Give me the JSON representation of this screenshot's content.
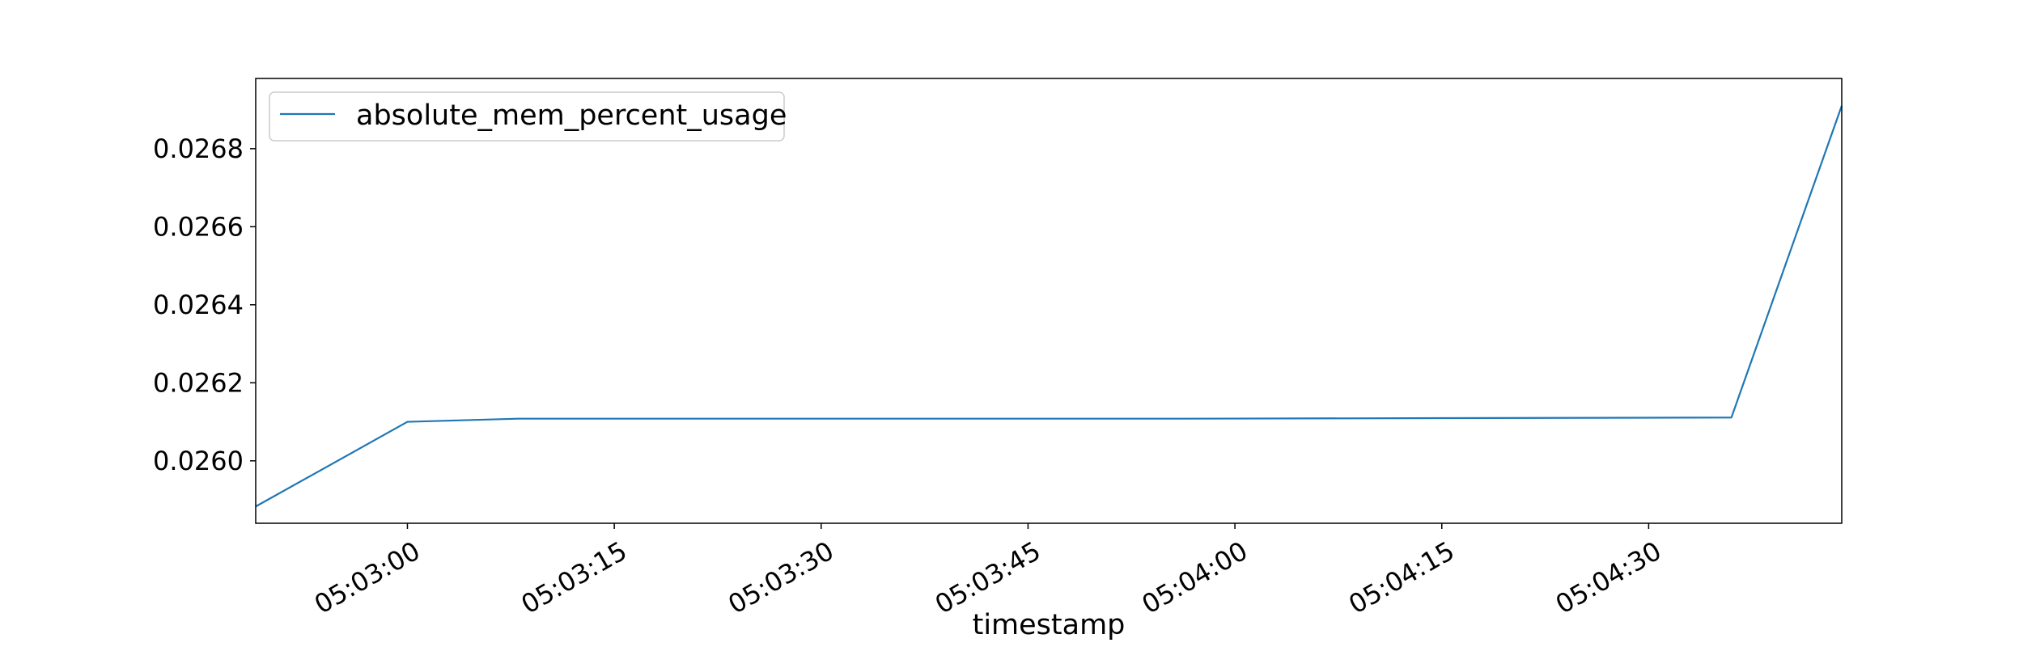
{
  "chart_data": {
    "type": "line",
    "title": "",
    "xlabel": "timestamp",
    "ylabel": "",
    "x_type": "time",
    "x_start": "05:02:49",
    "x_end": "05:04:44",
    "xlim": [
      "05:02:49",
      "05:04:44"
    ],
    "x_ticks": [
      "05:03:00",
      "05:03:15",
      "05:03:30",
      "05:03:45",
      "05:04:00",
      "05:04:15",
      "05:04:30"
    ],
    "ylim": [
      0.02584,
      0.02698
    ],
    "y_ticks": [
      0.026,
      0.0262,
      0.0264,
      0.0266,
      0.0268
    ],
    "y_tick_labels": [
      "0.0260",
      "0.0262",
      "0.0264",
      "0.0266",
      "0.0268"
    ],
    "grid": false,
    "legend_position": "upper-left",
    "series": [
      {
        "name": "absolute_mem_percent_usage",
        "color": "#1f77b4",
        "points": [
          {
            "x": "05:02:49",
            "y": 0.025883
          },
          {
            "x": "05:03:00",
            "y": 0.0261
          },
          {
            "x": "05:03:08",
            "y": 0.026108
          },
          {
            "x": "05:03:56",
            "y": 0.026108
          },
          {
            "x": "05:04:36",
            "y": 0.026111
          },
          {
            "x": "05:04:44",
            "y": 0.02691
          }
        ]
      }
    ]
  }
}
